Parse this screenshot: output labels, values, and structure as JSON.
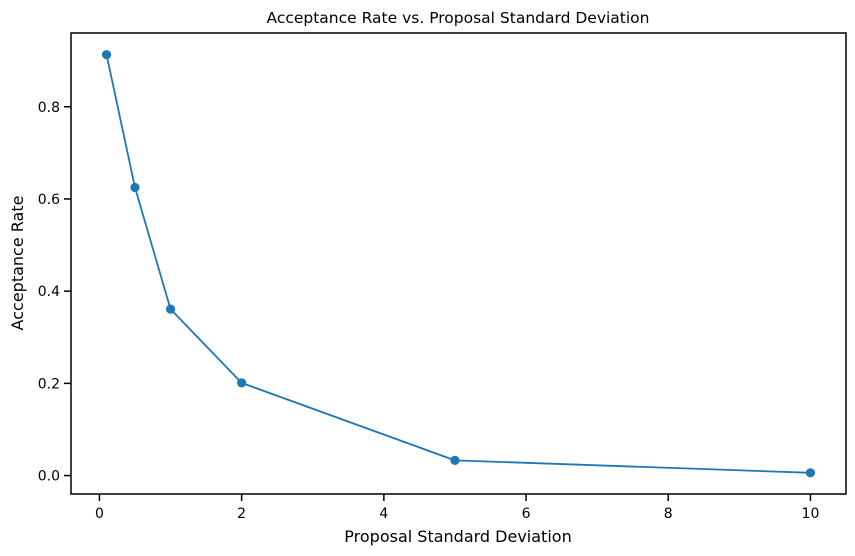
{
  "chart_data": {
    "type": "line",
    "title": "Acceptance Rate vs. Proposal Standard Deviation",
    "xlabel": "Proposal Standard Deviation",
    "ylabel": "Acceptance Rate",
    "xlim": [
      -0.4,
      10.5
    ],
    "ylim": [
      -0.04,
      0.96
    ],
    "x_ticks": [
      0,
      2,
      4,
      6,
      8,
      10
    ],
    "x_tick_labels": [
      "0",
      "2",
      "4",
      "6",
      "8",
      "10"
    ],
    "y_ticks": [
      0.0,
      0.2,
      0.4,
      0.6,
      0.8
    ],
    "y_tick_labels": [
      "0.0",
      "0.2",
      "0.4",
      "0.6",
      "0.8"
    ],
    "grid": false,
    "series": [
      {
        "color": "#1f77b4",
        "marker": "circle",
        "x": [
          0.1,
          0.5,
          1.0,
          2.0,
          5.0,
          10.0
        ],
        "y": [
          0.913,
          0.625,
          0.361,
          0.201,
          0.033,
          0.006
        ]
      }
    ]
  }
}
